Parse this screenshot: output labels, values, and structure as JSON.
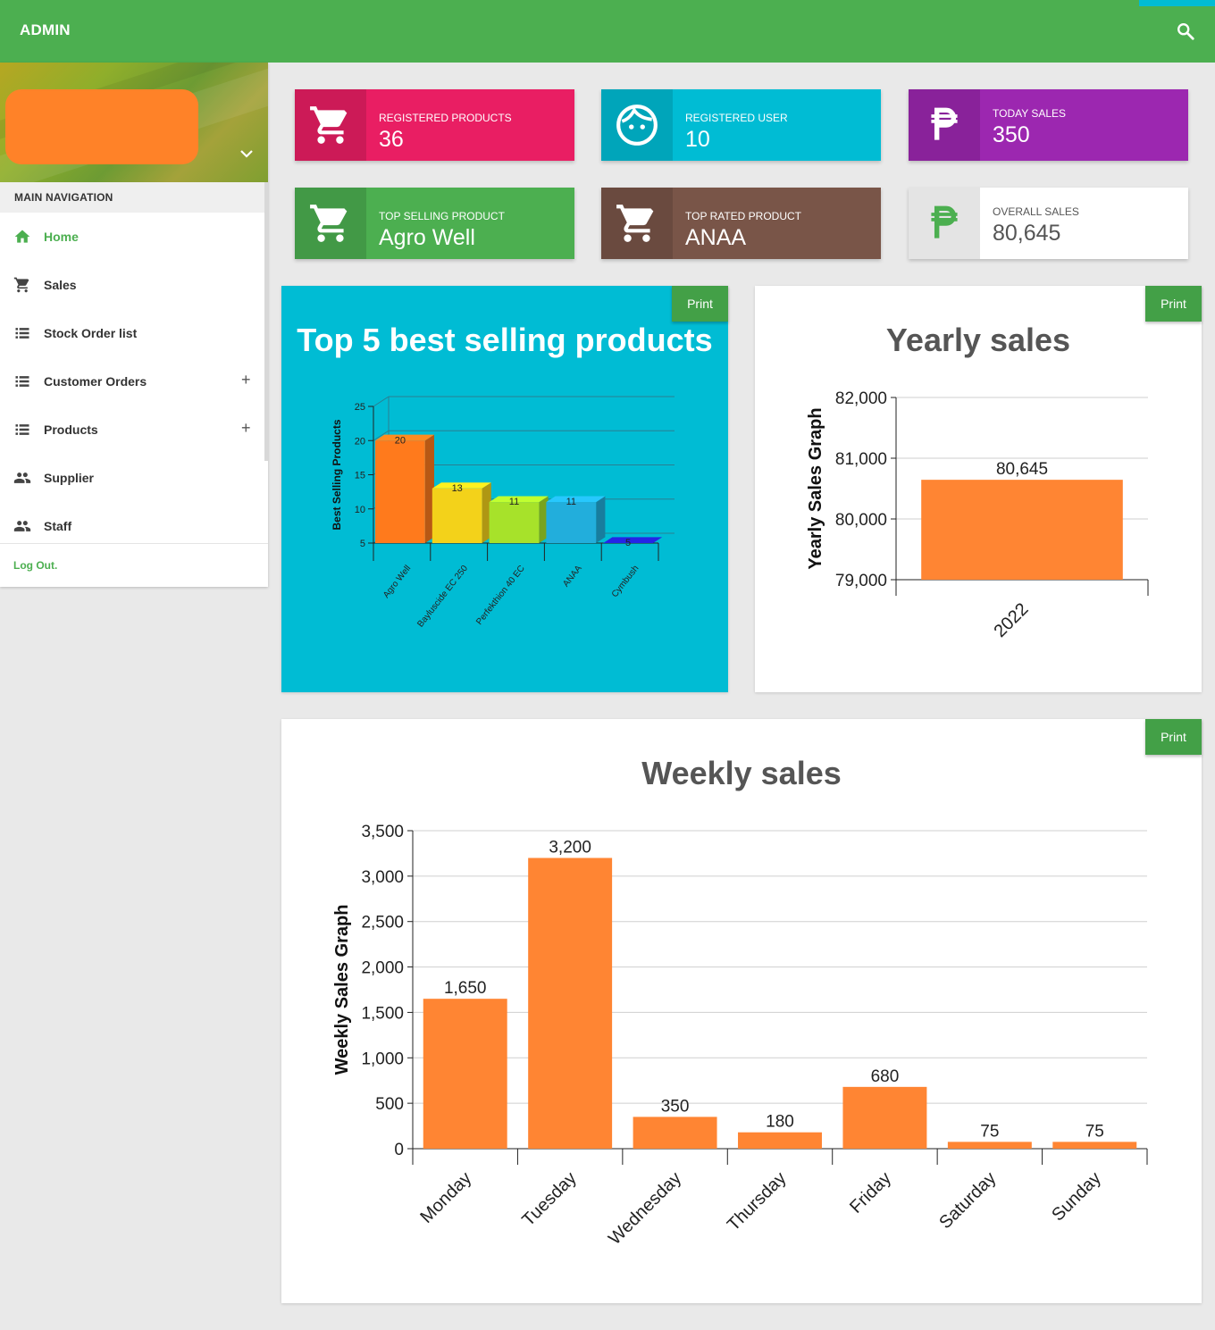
{
  "topbar": {
    "brand": "ADMIN",
    "search_icon": "search-icon"
  },
  "sidebar": {
    "nav_header": "MAIN NAVIGATION",
    "items": [
      {
        "label": "Home",
        "icon": "home-icon",
        "active": true,
        "expand": ""
      },
      {
        "label": "Sales",
        "icon": "cart-icon",
        "active": false,
        "expand": ""
      },
      {
        "label": "Stock Order list",
        "icon": "list-icon",
        "active": false,
        "expand": ""
      },
      {
        "label": "Customer Orders",
        "icon": "list-icon",
        "active": false,
        "expand": "+"
      },
      {
        "label": "Products",
        "icon": "list-icon",
        "active": false,
        "expand": "+"
      },
      {
        "label": "Supplier",
        "icon": "people-icon",
        "active": false,
        "expand": ""
      },
      {
        "label": "Staff",
        "icon": "people-icon",
        "active": false,
        "expand": ""
      }
    ],
    "logout": "Log Out."
  },
  "infoboxes": [
    {
      "label": "REGISTERED PRODUCTS",
      "value": "36",
      "icon": "cart-icon",
      "color": "#e91e63"
    },
    {
      "label": "REGISTERED USER",
      "value": "10",
      "icon": "face-icon",
      "color": "#00bcd4"
    },
    {
      "label": "TODAY SALES",
      "value": "350",
      "icon": "peso-icon",
      "color": "#9c27b0"
    },
    {
      "label": "TOP SELLING PRODUCT",
      "value": "Agro Well",
      "icon": "cart-icon",
      "color": "#4caf50"
    },
    {
      "label": "TOP RATED PRODUCT",
      "value": "ANAA",
      "icon": "cart-icon",
      "color": "#795548"
    },
    {
      "label": "OVERALL SALES",
      "value": "80,645",
      "icon": "peso-icon",
      "color": "#ffffff"
    }
  ],
  "print_label": "Print",
  "cards": {
    "top5": {
      "title": "Top 5 best selling products"
    },
    "yearly": {
      "title": "Yearly sales"
    },
    "weekly": {
      "title": "Weekly sales"
    }
  },
  "chart_data": [
    {
      "type": "bar",
      "title": "Top 5 best selling products",
      "ylabel": "Best Selling Products",
      "xlabel": "",
      "ylim": [
        5,
        25
      ],
      "yticks": [
        5,
        10,
        15,
        20,
        25
      ],
      "categories": [
        "Agro Well",
        "Bayluscide EC 250",
        "Perfekthion 40 EC",
        "ANAA",
        "Cymbush"
      ],
      "values": [
        20,
        13,
        11,
        11,
        5
      ],
      "colors": [
        "#ff7a1c",
        "#f3d21a",
        "#a7e22a",
        "#22aedc",
        "#2020c8"
      ],
      "grid": true,
      "style": "3d"
    },
    {
      "type": "bar",
      "title": "Yearly sales",
      "ylabel": "Yearly Sales Graph",
      "xlabel": "",
      "ylim": [
        79000,
        82000
      ],
      "yticks": [
        "79,000",
        "80,000",
        "81,000",
        "82,000"
      ],
      "categories": [
        "2022"
      ],
      "values": [
        80645
      ],
      "value_labels": [
        "80,645"
      ],
      "color": "#ff8533",
      "grid": true
    },
    {
      "type": "bar",
      "title": "Weekly sales",
      "ylabel": "Weekly Sales Graph",
      "xlabel": "",
      "ylim": [
        0,
        3500
      ],
      "yticks": [
        "0",
        "500",
        "1,000",
        "1,500",
        "2,000",
        "2,500",
        "3,000",
        "3,500"
      ],
      "categories": [
        "Monday",
        "Tuesday",
        "Wednesday",
        "Thursday",
        "Friday",
        "Saturday",
        "Sunday"
      ],
      "values": [
        1650,
        3200,
        350,
        180,
        680,
        75,
        75
      ],
      "value_labels": [
        "1,650",
        "3,200",
        "350",
        "180",
        "680",
        "75",
        "75"
      ],
      "color": "#ff8533",
      "grid": true
    }
  ]
}
